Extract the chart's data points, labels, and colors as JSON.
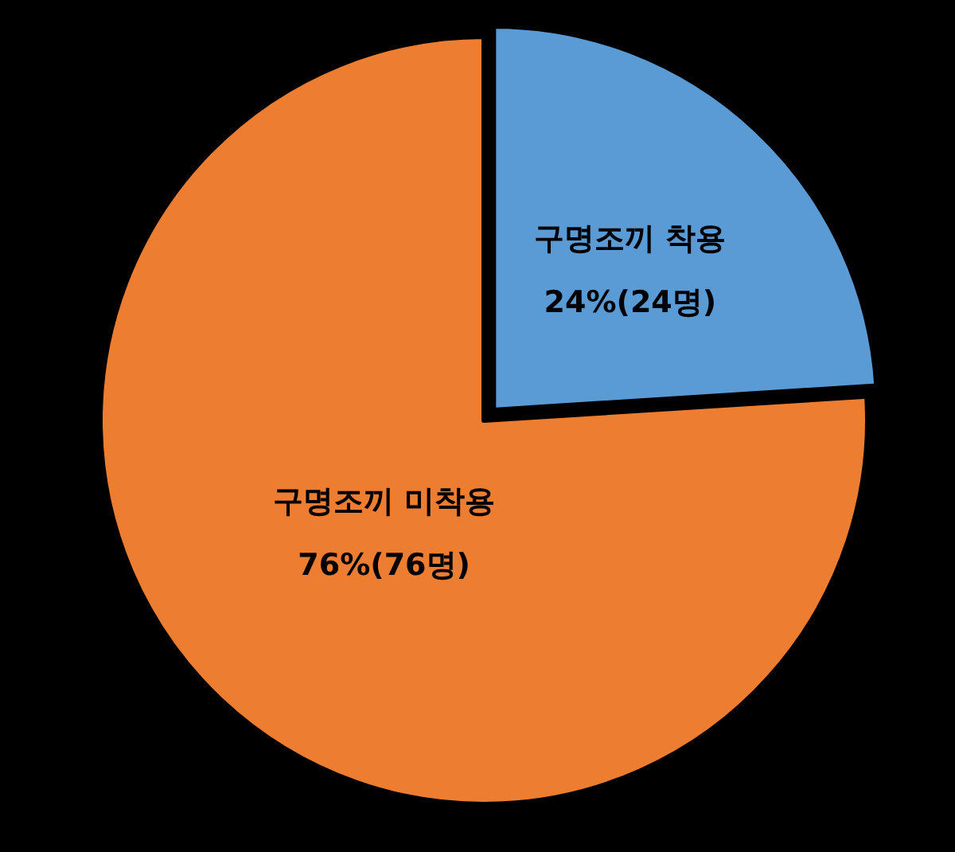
{
  "chart_data": {
    "type": "pie",
    "categories": [
      "구명조끼 착용",
      "구명조끼 미착용"
    ],
    "values": [
      24,
      76
    ],
    "colors": [
      "#5b9bd5",
      "#ed7d31"
    ],
    "value_labels": [
      "24%(24명)",
      "76%(76명)"
    ]
  }
}
